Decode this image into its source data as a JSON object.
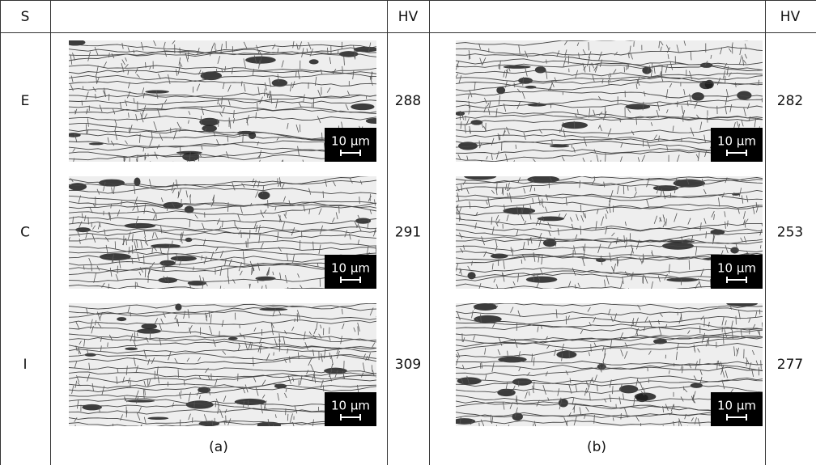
{
  "header": {
    "s": "S",
    "hv": [
      "HV",
      "HV"
    ]
  },
  "rows": [
    {
      "label": "E",
      "hv": [
        288,
        282
      ],
      "scale": [
        "10 µm",
        "10 µm"
      ]
    },
    {
      "label": "C",
      "hv": [
        291,
        253
      ],
      "scale": [
        "10 µm",
        "10 µm"
      ]
    },
    {
      "label": "I",
      "hv": [
        309,
        277
      ],
      "scale": [
        "10 µm",
        "10 µm"
      ]
    }
  ],
  "captions": [
    "(a)",
    "(b)"
  ]
}
